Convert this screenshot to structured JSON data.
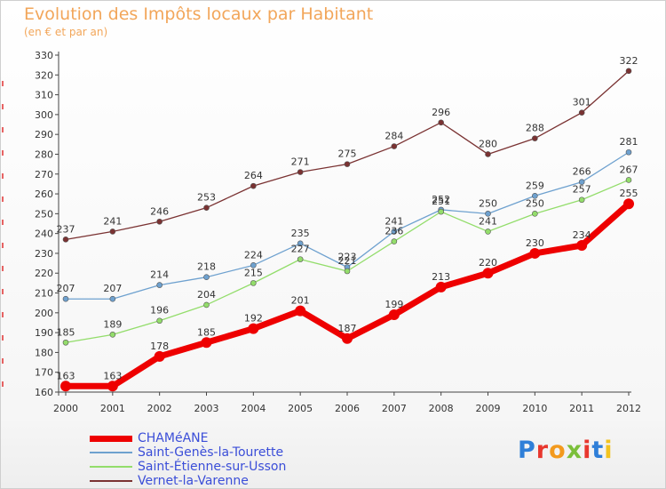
{
  "header": {
    "title": "Evolution des Impôts locaux par Habitant",
    "subtitle": "(en € et par an)"
  },
  "logo": {
    "text": "Proxiti"
  },
  "chart_data": {
    "type": "line",
    "categories": [
      "2000",
      "2001",
      "2002",
      "2003",
      "2004",
      "2005",
      "2006",
      "2007",
      "2008",
      "2009",
      "2010",
      "2011",
      "2012"
    ],
    "ylim": [
      160,
      330
    ],
    "yticks": [
      160,
      170,
      180,
      190,
      200,
      210,
      220,
      230,
      240,
      250,
      260,
      270,
      280,
      290,
      300,
      310,
      320,
      330
    ],
    "grid": false,
    "legend_position": "bottom-left",
    "series": [
      {
        "name": "CHAMéANE",
        "color": "#ee0000",
        "values": [
          163,
          163,
          178,
          185,
          192,
          201,
          187,
          199,
          213,
          220,
          230,
          234,
          255
        ]
      },
      {
        "name": "Saint-Genès-la-Tourette",
        "color": "#6ea1cf",
        "values": [
          207,
          207,
          214,
          218,
          224,
          235,
          223,
          241,
          252,
          250,
          259,
          266,
          281
        ]
      },
      {
        "name": "Saint-Étienne-sur-Usson",
        "color": "#93dd6b",
        "values": [
          185,
          189,
          196,
          204,
          215,
          227,
          221,
          236,
          251,
          241,
          250,
          257,
          267
        ]
      },
      {
        "name": "Vernet-la-Varenne",
        "color": "#7a3232",
        "values": [
          237,
          241,
          246,
          253,
          264,
          271,
          275,
          284,
          296,
          280,
          288,
          301,
          322
        ]
      }
    ]
  }
}
